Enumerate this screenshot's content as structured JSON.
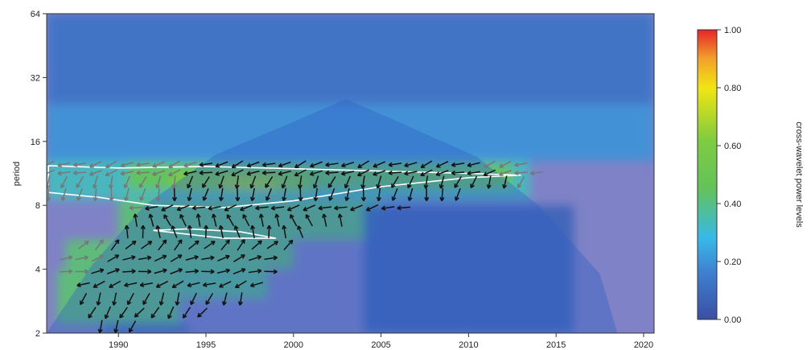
{
  "chart_data": {
    "type": "heatmap",
    "ylabel": "period",
    "colorbar_label": "cross-wavelet power levels",
    "x_ticks": [
      1990,
      1995,
      2000,
      2005,
      2010,
      2015,
      2020
    ],
    "x_tick_labels": [
      "1990",
      "1995",
      "2000",
      "2005",
      "2010",
      "2015",
      "2020"
    ],
    "y_ticks": [
      2,
      4,
      8,
      16,
      32,
      64
    ],
    "y_tick_labels": [
      "2",
      "4",
      "8",
      "16",
      "32",
      "64"
    ],
    "y_scale": "log2",
    "xlim": [
      1985.9,
      2020.6
    ],
    "ylim": [
      2,
      64
    ],
    "colorbar_ticks": [
      0.0,
      0.2,
      0.4,
      0.6,
      0.8,
      1.0
    ],
    "colorbar_tick_labels": [
      "0.00",
      "0.20",
      "0.40",
      "0.60",
      "0.80",
      "1.00"
    ],
    "color_scale": [
      "#3a4fa3",
      "#3f7fd0",
      "#37b9e9",
      "#63c25b",
      "#f2e513",
      "#f2a12a",
      "#e6252a"
    ],
    "cone_of_influence": [
      {
        "x": 1985.9,
        "y": 2.0
      },
      {
        "x": 1988.5,
        "y": 4.2
      },
      {
        "x": 1991.5,
        "y": 8.0
      },
      {
        "x": 1995.5,
        "y": 13.8
      },
      {
        "x": 2000.0,
        "y": 19.8
      },
      {
        "x": 2003.0,
        "y": 25.3
      },
      {
        "x": 2006.0,
        "y": 19.8
      },
      {
        "x": 2010.5,
        "y": 13.5
      },
      {
        "x": 2014.0,
        "y": 8.0
      },
      {
        "x": 2017.5,
        "y": 3.8
      },
      {
        "x": 2018.5,
        "y": 2.0
      }
    ],
    "significance_contours": [
      [
        {
          "x": 1986.0,
          "y": 12.3
        },
        {
          "x": 1990.0,
          "y": 12.0
        },
        {
          "x": 1995.0,
          "y": 12.2
        },
        {
          "x": 2000.0,
          "y": 11.9
        },
        {
          "x": 2005.0,
          "y": 11.6
        },
        {
          "x": 2010.0,
          "y": 11.3
        },
        {
          "x": 2013.0,
          "y": 11.1
        },
        {
          "x": 2010.0,
          "y": 10.8
        },
        {
          "x": 2005.0,
          "y": 9.8
        },
        {
          "x": 2000.0,
          "y": 8.4
        },
        {
          "x": 1996.0,
          "y": 7.8
        },
        {
          "x": 1992.0,
          "y": 8.0
        },
        {
          "x": 1989.0,
          "y": 8.7
        },
        {
          "x": 1986.0,
          "y": 9.2
        }
      ],
      [
        {
          "x": 1992.0,
          "y": 6.1
        },
        {
          "x": 1996.0,
          "y": 5.6
        },
        {
          "x": 1999.0,
          "y": 5.6
        },
        {
          "x": 1997.0,
          "y": 6.0
        },
        {
          "x": 1994.0,
          "y": 6.2
        }
      ]
    ],
    "power_regions": [
      {
        "x0": 1985.9,
        "x1": 2020.6,
        "y0": 24,
        "y1": 64,
        "level": 0.12
      },
      {
        "x0": 1985.9,
        "x1": 2020.6,
        "y0": 13,
        "y1": 24,
        "level": 0.2
      },
      {
        "x0": 1985.9,
        "x1": 2013.5,
        "y0": 8.5,
        "y1": 13,
        "level": 0.33
      },
      {
        "x0": 1990.5,
        "x1": 2012.5,
        "y0": 9.5,
        "y1": 12.6,
        "level": 0.47
      },
      {
        "x0": 1993.0,
        "x1": 2001.0,
        "y0": 9.2,
        "y1": 11.6,
        "level": 0.58
      },
      {
        "x0": 1996.0,
        "x1": 1999.0,
        "y0": 9.5,
        "y1": 10.8,
        "level": 0.67
      },
      {
        "x0": 1990.0,
        "x1": 2005.0,
        "y0": 5.5,
        "y1": 8.5,
        "level": 0.42
      },
      {
        "x0": 1987.0,
        "x1": 2000.0,
        "y0": 4.0,
        "y1": 5.5,
        "level": 0.42
      },
      {
        "x0": 1986.5,
        "x1": 1993.5,
        "y0": 2.2,
        "y1": 4.0,
        "level": 0.42
      },
      {
        "x0": 1993.5,
        "x1": 1998.5,
        "y0": 2.9,
        "y1": 4.0,
        "level": 0.4
      },
      {
        "x0": 2004.0,
        "x1": 2016.0,
        "y0": 2.0,
        "y1": 8.0,
        "level": 0.07
      },
      {
        "x0": 1989.0,
        "x1": 1994.0,
        "y0": 2.0,
        "y1": 2.2,
        "level": 0.05
      }
    ],
    "phase_arrow_rows": [
      {
        "y": 12.5,
        "x0": 1986.0,
        "x1": 2013.0,
        "step": 0.9,
        "angle": 200
      },
      {
        "y": 11.4,
        "x0": 1986.0,
        "x1": 2014.0,
        "step": 0.9,
        "angle": 195
      },
      {
        "y": 10.3,
        "x0": 1986.0,
        "x1": 2013.0,
        "step": 0.9,
        "angle": 250
      },
      {
        "y": 9.0,
        "x0": 1986.0,
        "x1": 2010.0,
        "step": 0.9,
        "angle": 260
      },
      {
        "y": 7.8,
        "x0": 1991.0,
        "x1": 2007.0,
        "step": 0.9,
        "angle": 195
      },
      {
        "y": 6.8,
        "x0": 1991.0,
        "x1": 2003.0,
        "step": 0.9,
        "angle": 110
      },
      {
        "y": 6.0,
        "x0": 1990.5,
        "x1": 2000.5,
        "step": 0.9,
        "angle": 100
      },
      {
        "y": 5.2,
        "x0": 1988.0,
        "x1": 2000.0,
        "step": 0.9,
        "angle": 45
      },
      {
        "y": 4.5,
        "x0": 1987.0,
        "x1": 1999.0,
        "step": 0.9,
        "angle": 20
      },
      {
        "y": 3.9,
        "x0": 1987.0,
        "x1": 1999.5,
        "step": 0.9,
        "angle": 10
      },
      {
        "y": 3.4,
        "x0": 1988.0,
        "x1": 1998.0,
        "step": 0.9,
        "angle": 200
      },
      {
        "y": 2.9,
        "x0": 1988.0,
        "x1": 1997.0,
        "step": 0.9,
        "angle": 250
      },
      {
        "y": 2.5,
        "x0": 1988.5,
        "x1": 1995.0,
        "step": 0.9,
        "angle": 235
      },
      {
        "y": 2.15,
        "x0": 1989.0,
        "x1": 1991.0,
        "step": 0.9,
        "angle": 250
      }
    ]
  }
}
